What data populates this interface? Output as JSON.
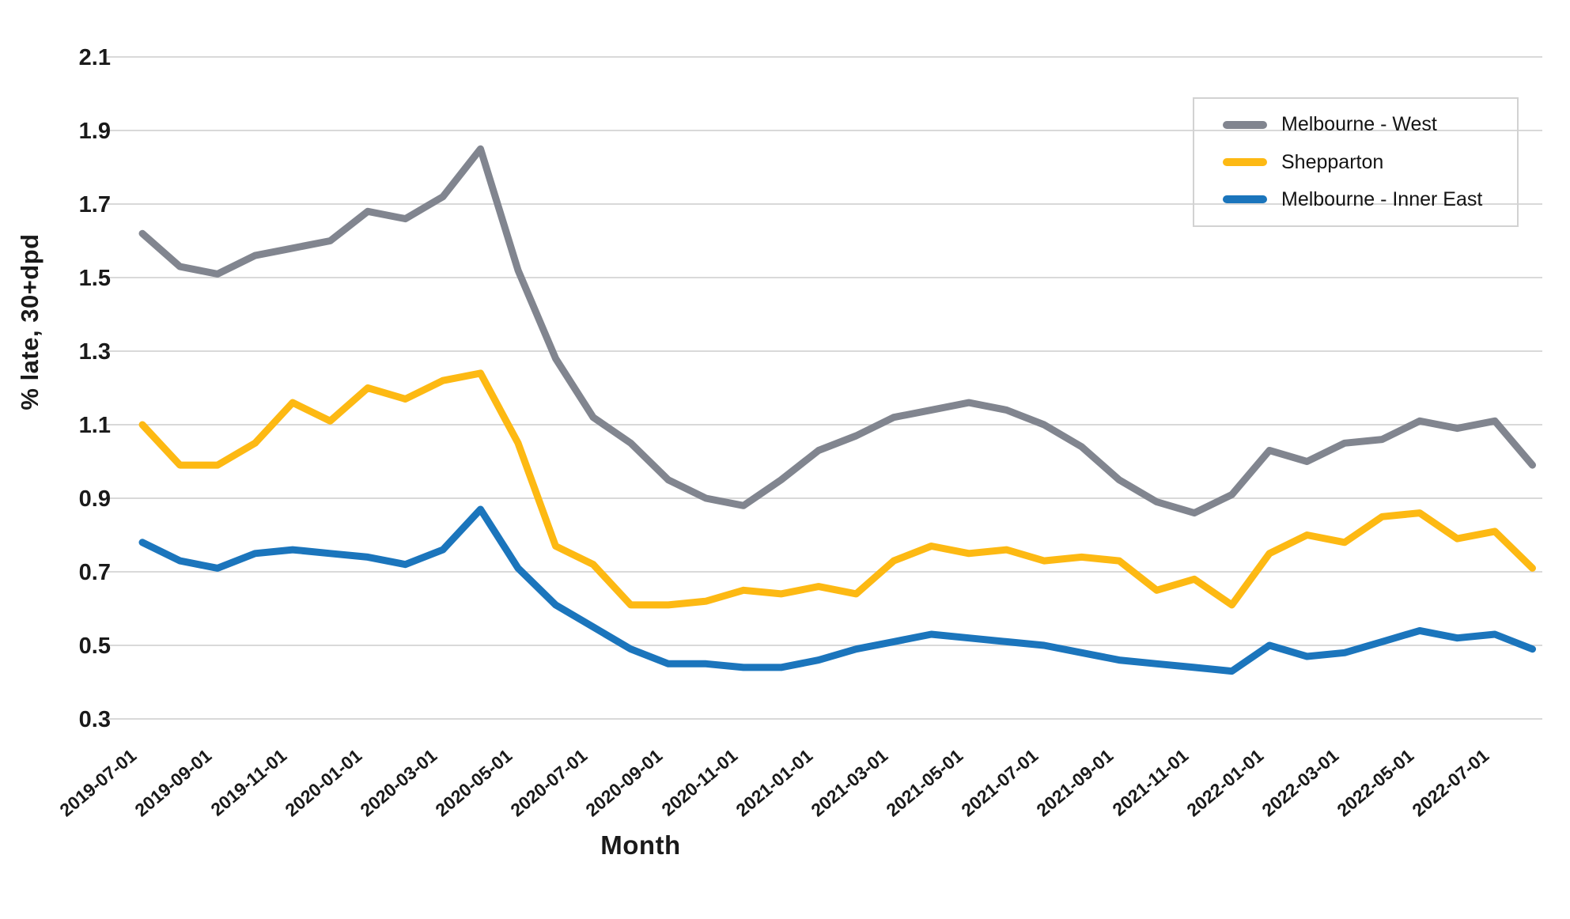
{
  "chart_data": {
    "type": "line",
    "xlabel": "Month",
    "ylabel": "% late, 30+dpd",
    "ylim": [
      0.3,
      2.1
    ],
    "yticks": [
      2.1,
      1.9,
      1.7,
      1.5,
      1.3,
      1.1,
      0.9,
      0.7,
      0.5,
      0.3
    ],
    "grid": "horizontal",
    "legend_position": "top-right",
    "x_tick_step": 2,
    "x": [
      "2019-07-01",
      "2019-08-01",
      "2019-09-01",
      "2019-10-01",
      "2019-11-01",
      "2019-12-01",
      "2020-01-01",
      "2020-02-01",
      "2020-03-01",
      "2020-04-01",
      "2020-05-01",
      "2020-06-01",
      "2020-07-01",
      "2020-08-01",
      "2020-09-01",
      "2020-10-01",
      "2020-11-01",
      "2020-12-01",
      "2021-01-01",
      "2021-02-01",
      "2021-03-01",
      "2021-04-01",
      "2021-05-01",
      "2021-06-01",
      "2021-07-01",
      "2021-08-01",
      "2021-09-01",
      "2021-10-01",
      "2021-11-01",
      "2021-12-01",
      "2022-01-01",
      "2022-02-01",
      "2022-03-01",
      "2022-04-01",
      "2022-05-01",
      "2022-06-01",
      "2022-07-01",
      "2022-08-01"
    ],
    "x_tick_labels": [
      "2019-07-01",
      "2019-09-01",
      "2019-11-01",
      "2020-01-01",
      "2020-03-01",
      "2020-05-01",
      "2020-07-01",
      "2020-09-01",
      "2020-11-01",
      "2021-01-01",
      "2021-03-01",
      "2021-05-01",
      "2021-07-01",
      "2021-09-01",
      "2021-11-01",
      "2022-01-01",
      "2022-03-01",
      "2022-05-01",
      "2022-07-01"
    ],
    "series": [
      {
        "name": "Melbourne - West",
        "color": "#81858f",
        "values": [
          1.62,
          1.53,
          1.51,
          1.56,
          1.58,
          1.6,
          1.68,
          1.66,
          1.72,
          1.85,
          1.52,
          1.28,
          1.12,
          1.05,
          0.95,
          0.9,
          0.88,
          0.95,
          1.03,
          1.07,
          1.12,
          1.14,
          1.16,
          1.14,
          1.1,
          1.04,
          0.95,
          0.89,
          0.86,
          0.91,
          1.03,
          1.0,
          1.05,
          1.06,
          1.11,
          1.09,
          1.11,
          0.99
        ]
      },
      {
        "name": "Shepparton",
        "color": "#fdb913",
        "values": [
          1.1,
          0.99,
          0.99,
          1.05,
          1.16,
          1.11,
          1.2,
          1.17,
          1.22,
          1.24,
          1.05,
          0.77,
          0.72,
          0.61,
          0.61,
          0.62,
          0.65,
          0.64,
          0.66,
          0.64,
          0.73,
          0.77,
          0.75,
          0.76,
          0.73,
          0.74,
          0.73,
          0.65,
          0.68,
          0.61,
          0.75,
          0.8,
          0.78,
          0.85,
          0.86,
          0.79,
          0.81,
          0.71
        ]
      },
      {
        "name": "Melbourne - Inner East",
        "color": "#1b75bc",
        "values": [
          0.78,
          0.73,
          0.71,
          0.75,
          0.76,
          0.75,
          0.74,
          0.72,
          0.76,
          0.87,
          0.71,
          0.61,
          0.55,
          0.49,
          0.45,
          0.45,
          0.44,
          0.44,
          0.46,
          0.49,
          0.51,
          0.53,
          0.52,
          0.51,
          0.5,
          0.48,
          0.46,
          0.45,
          0.44,
          0.43,
          0.5,
          0.47,
          0.48,
          0.51,
          0.54,
          0.52,
          0.53,
          0.49
        ]
      }
    ],
    "gridline_color": "#d9d9d9",
    "text_color": "#1a1a1a"
  }
}
